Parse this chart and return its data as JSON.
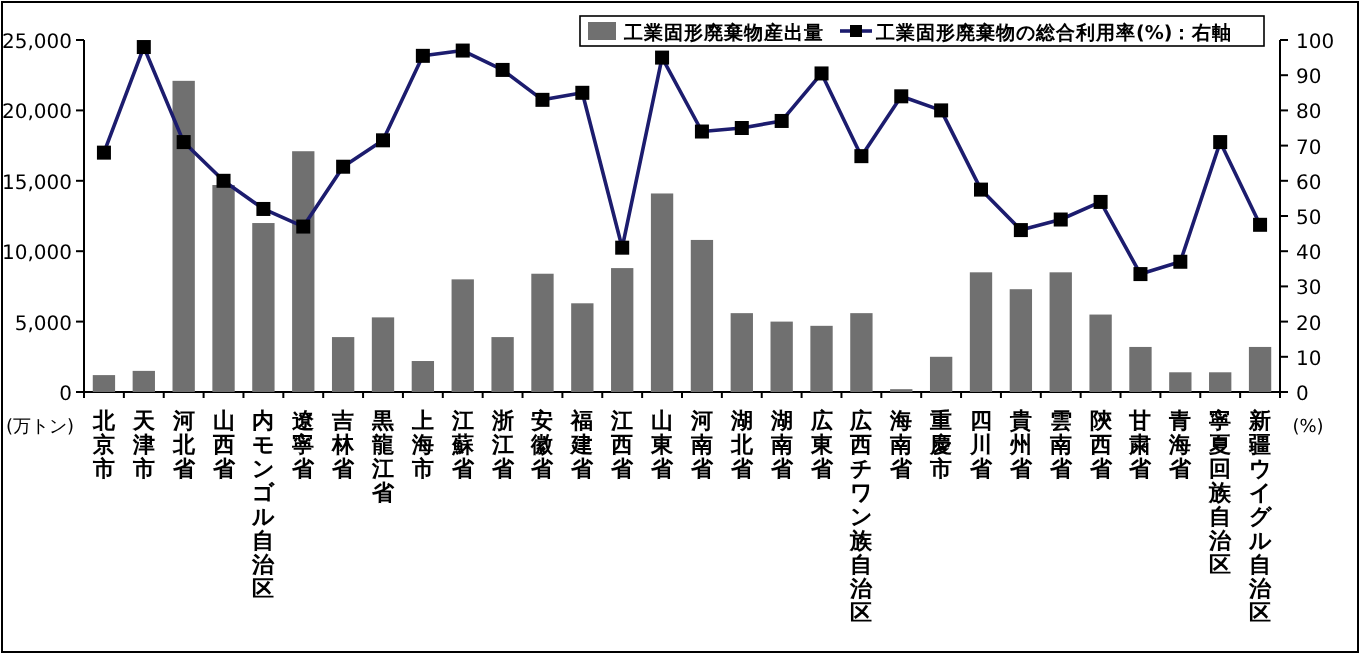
{
  "chart_data": {
    "type": "bar",
    "ylabel": "(万トン)",
    "y2label": "(%)",
    "categories": [
      "北京市",
      "天津市",
      "河北省",
      "山西省",
      "内モンゴル自治区",
      "遼寧省",
      "吉林省",
      "黒龍江省",
      "上海市",
      "江蘇省",
      "浙江省",
      "安徽省",
      "福建省",
      "江西省",
      "山東省",
      "河南省",
      "湖北省",
      "湖南省",
      "広東省",
      "広西チワン族自治区",
      "海南省",
      "重慶市",
      "四川省",
      "貴州省",
      "雲南省",
      "陝西省",
      "甘粛省",
      "青海省",
      "寧夏回族自治区",
      "新疆ウイグル自治区"
    ],
    "series": [
      {
        "name": "工業固形廃棄物産出量",
        "color": "#707070",
        "values": [
          1200,
          1500,
          22100,
          14700,
          12000,
          17100,
          3900,
          5300,
          2200,
          8000,
          3900,
          8400,
          6300,
          8800,
          14100,
          10800,
          5600,
          5000,
          4700,
          5600,
          200,
          2500,
          8500,
          7300,
          8500,
          5500,
          3200,
          1400,
          1400,
          3200
        ]
      },
      {
        "name": "工業固形廃棄物の総合利用率(%)：右軸",
        "type": "line",
        "axis": "y2",
        "color": "#1c1c6e",
        "marker": "square",
        "values": [
          68,
          98,
          71,
          60,
          52,
          47,
          64,
          71.5,
          95.5,
          97,
          91.5,
          83,
          85,
          41,
          95,
          74,
          75,
          77,
          90.5,
          67,
          84,
          80,
          57.5,
          46,
          49,
          54,
          33.5,
          37,
          71,
          47.5
        ]
      }
    ],
    "ylim": [
      0,
      25000
    ],
    "yticks": [
      {
        "value": 0,
        "label": "0"
      },
      {
        "value": 5000,
        "label": "5,000"
      },
      {
        "value": 10000,
        "label": "10,000"
      },
      {
        "value": 15000,
        "label": "15,000"
      },
      {
        "value": 20000,
        "label": "20,000"
      },
      {
        "value": 25000,
        "label": "25,000"
      }
    ],
    "y2lim": [
      0,
      100
    ],
    "y2ticks": [
      0,
      10,
      20,
      30,
      40,
      50,
      60,
      70,
      80,
      90,
      100
    ],
    "legend": "top right",
    "grid": false
  }
}
